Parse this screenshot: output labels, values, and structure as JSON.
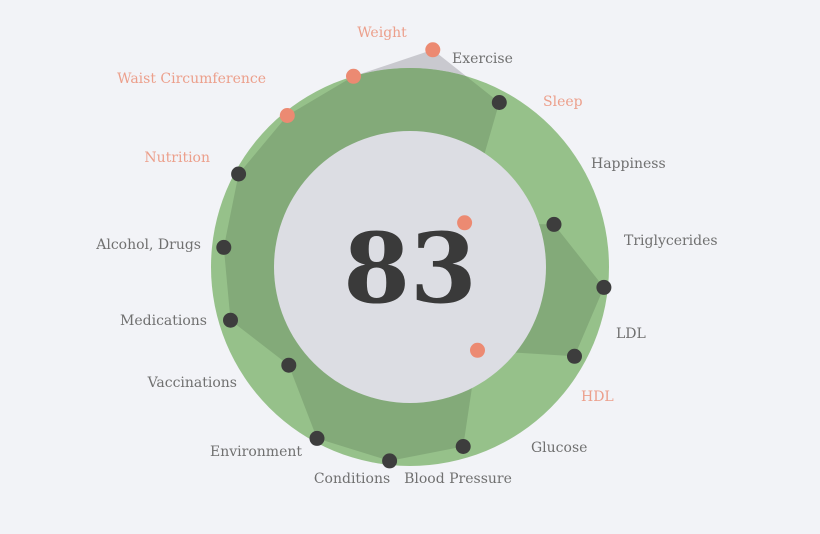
{
  "chart_data": {
    "type": "radar",
    "score": "83",
    "colors": {
      "background": "#f2f3f7",
      "ring": "#96c18a",
      "inner": "#dcdde3",
      "shape": "#c9c9cf",
      "overlap": "#83aa79",
      "good_point": "#3d3d3d",
      "bad_point": "#ec8a72",
      "good_label": "#707070",
      "bad_label": "#ec9f8b"
    },
    "metrics": [
      {
        "label": "Weight",
        "value": 1.12,
        "status": "bad"
      },
      {
        "label": "Exercise",
        "value": 0.96,
        "status": "good"
      },
      {
        "label": "Sleep",
        "value": 0.36,
        "status": "bad"
      },
      {
        "label": "Happiness",
        "value": 0.77,
        "status": "good"
      },
      {
        "label": "Triglycerides",
        "value": 1.0,
        "status": "good"
      },
      {
        "label": "LDL",
        "value": 0.96,
        "status": "good"
      },
      {
        "label": "HDL",
        "value": 0.55,
        "status": "bad"
      },
      {
        "label": "Glucose",
        "value": 0.96,
        "status": "good"
      },
      {
        "label": "Blood Pressure",
        "value": 1.0,
        "status": "good"
      },
      {
        "label": "Conditions",
        "value": 1.0,
        "status": "good"
      },
      {
        "label": "Environment",
        "value": 0.8,
        "status": "good"
      },
      {
        "label": "Vaccinations",
        "value": 0.96,
        "status": "good"
      },
      {
        "label": "Medications",
        "value": 0.96,
        "status": "good"
      },
      {
        "label": "Alcohol, Drugs",
        "value": 1.0,
        "status": "good"
      },
      {
        "label": "Nutrition",
        "value": 1.0,
        "status": "bad"
      },
      {
        "label": "Waist Circumference",
        "value": 1.02,
        "status": "bad"
      }
    ]
  }
}
